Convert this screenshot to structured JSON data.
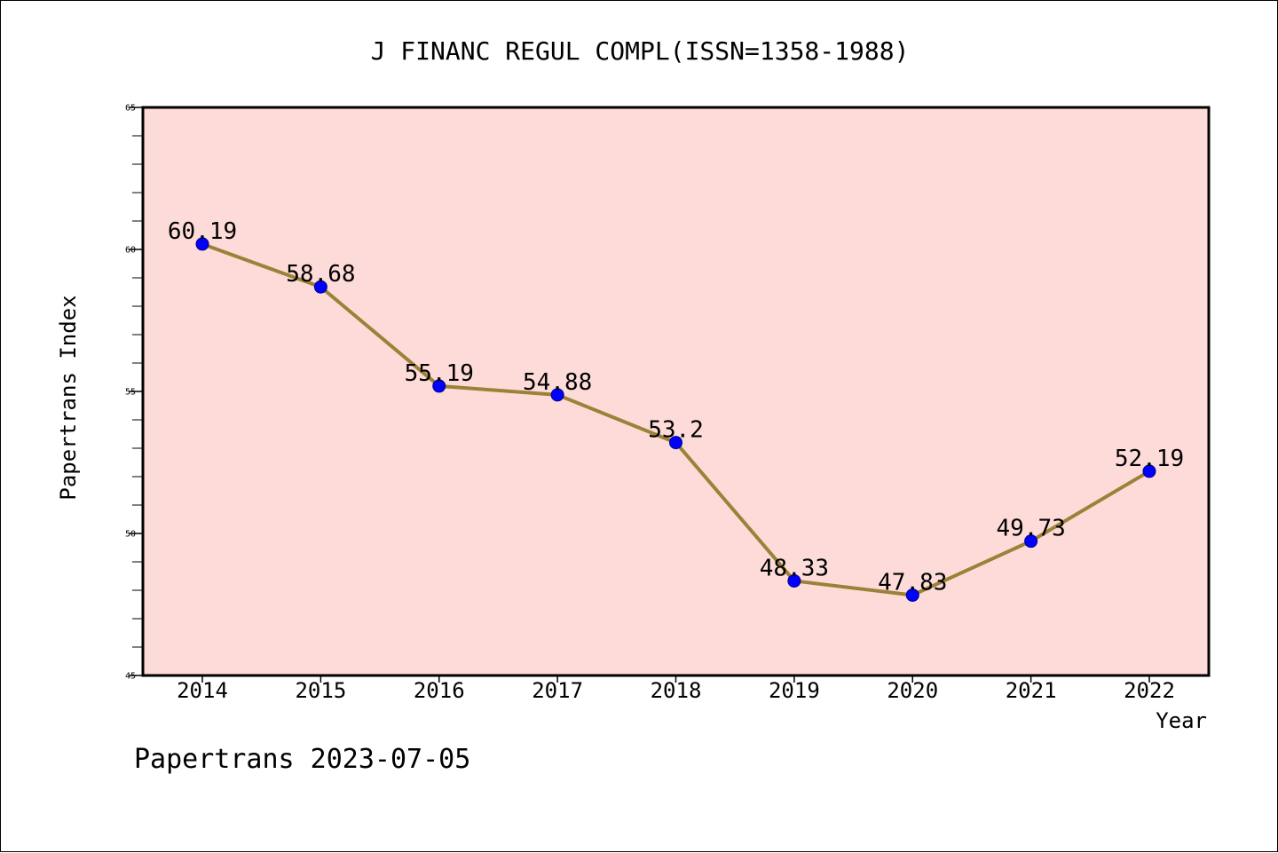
{
  "chart_data": {
    "type": "line",
    "title": "J FINANC REGUL COMPL(ISSN=1358-1988)",
    "xlabel": "Year",
    "ylabel": "Papertrans Index",
    "categories": [
      "2014",
      "2015",
      "2016",
      "2017",
      "2018",
      "2019",
      "2020",
      "2021",
      "2022"
    ],
    "series": [
      {
        "name": "Papertrans Index",
        "values": [
          60.19,
          58.68,
          55.19,
          54.88,
          53.2,
          48.33,
          47.83,
          49.73,
          52.19
        ],
        "labels": [
          "60.19",
          "58.68",
          "55.19",
          "54.88",
          "53.2",
          "48.33",
          "47.83",
          "49.73",
          "52.19"
        ]
      }
    ],
    "ylim": [
      45,
      65
    ],
    "yticks": [
      45,
      50,
      55,
      60,
      65
    ],
    "ytick_labels": [
      "45",
      "50",
      "55",
      "60",
      "65"
    ],
    "minor_tick_step": 1,
    "grid": false
  },
  "footer": {
    "text": "Papertrans 2023-07-05"
  },
  "colors": {
    "plot_background": "#fddbd8",
    "line": "#9b8238",
    "marker": "#0000ff",
    "axis": "#000000"
  }
}
